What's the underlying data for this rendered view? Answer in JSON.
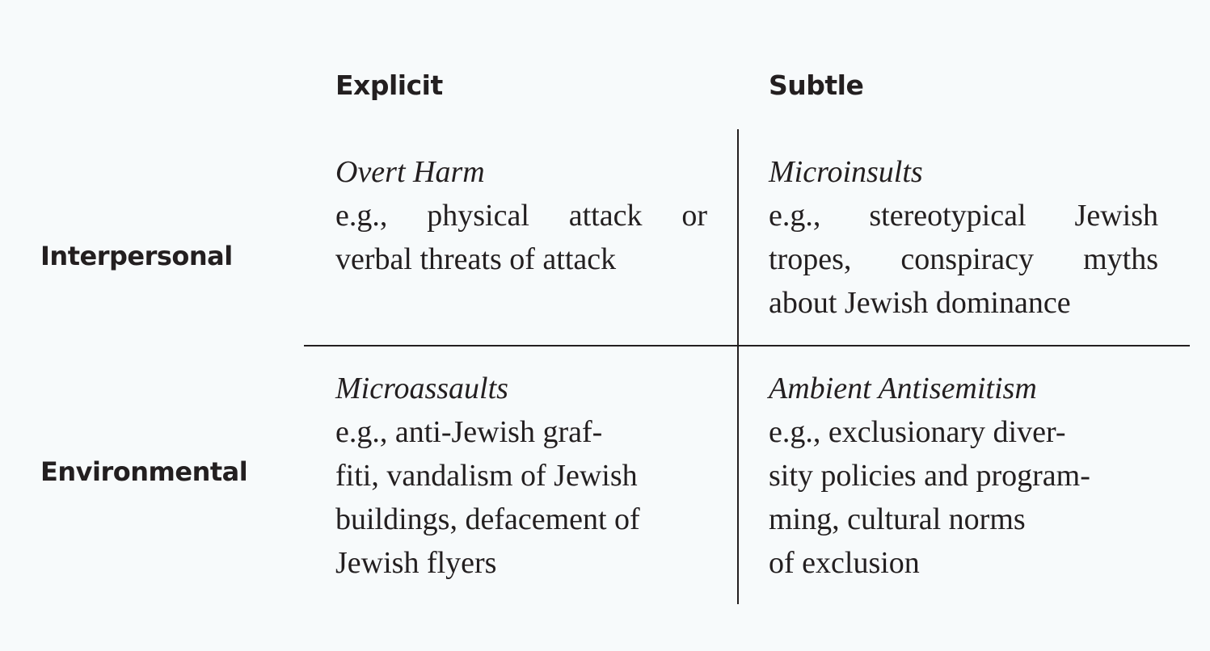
{
  "columns": {
    "explicit": "Explicit",
    "subtle": "Subtle"
  },
  "rows": {
    "interpersonal": "Interpersonal",
    "environmental": "Environmental"
  },
  "cells": {
    "interpersonal_explicit": {
      "title": "Overt Harm",
      "lines": [
        "e.g., physical attack or",
        "verbal threats of attack"
      ]
    },
    "interpersonal_subtle": {
      "title": "Microinsults",
      "lines": [
        "e.g., stereotypical Jewish",
        "tropes, conspiracy myths",
        "about Jewish dominance"
      ]
    },
    "environmental_explicit": {
      "title": "Microassaults",
      "lines": [
        "e.g., anti-Jewish graf-",
        "fiti, vandalism of Jewish",
        "buildings, defacement of",
        "Jewish flyers"
      ]
    },
    "environmental_subtle": {
      "title": "Ambient Antisemitism",
      "lines": [
        "e.g., exclusionary diver-",
        "sity policies and program-",
        "ming, cultural norms",
        "of exclusion"
      ]
    }
  }
}
